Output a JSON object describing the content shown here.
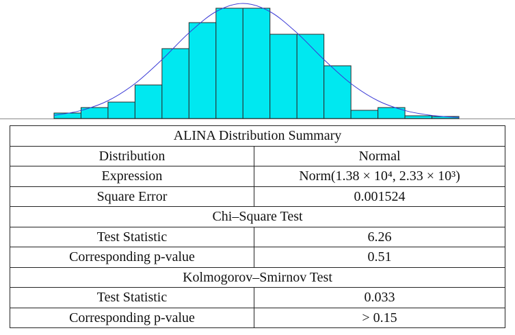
{
  "chart_data": {
    "type": "histogram",
    "bins": [
      0,
      1,
      2,
      3,
      4,
      5,
      6,
      7,
      8,
      9,
      10,
      11,
      12,
      13,
      14,
      15
    ],
    "values": [
      8,
      16,
      24,
      49,
      102,
      140,
      161,
      161,
      123,
      123,
      77,
      12,
      16,
      4,
      3
    ],
    "color": "#00e8f0",
    "xlim": [
      0,
      15
    ],
    "ylim": [
      0,
      170
    ],
    "fit": {
      "type": "line",
      "x": [
        0,
        1,
        2,
        3,
        4,
        5,
        6,
        7,
        8,
        9,
        10,
        11,
        12,
        13,
        14,
        15
      ],
      "values": [
        4.5,
        11.7,
        26,
        51,
        86,
        125,
        156,
        168,
        156,
        125,
        86,
        51,
        26,
        11.7,
        4.5,
        1.5
      ],
      "color": "#3a3ad6"
    }
  },
  "table": {
    "title": "ALINA Distribution Summary",
    "rows": [
      [
        "Distribution",
        "Normal"
      ],
      [
        "Expression",
        "Norm(1.38 × 10⁴, 2.33 × 10³)"
      ],
      [
        "Square Error",
        "0.001524"
      ],
      [
        "Chi–Square Test"
      ],
      [
        "Test Statistic",
        "6.26"
      ],
      [
        "Corresponding p-value",
        "0.51"
      ],
      [
        "Kolmogorov–Smirnov Test"
      ],
      [
        "Test Statistic",
        "0.033"
      ],
      [
        "Corresponding p-value",
        "> 0.15"
      ]
    ]
  }
}
